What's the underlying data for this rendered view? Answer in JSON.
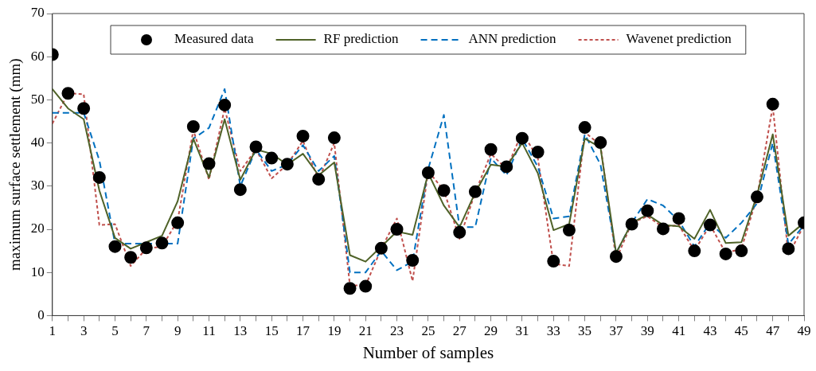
{
  "chart_data": {
    "type": "line",
    "xlabel": "Number of samples",
    "ylabel": "maximum surface settlement (mm)",
    "x": [
      1,
      2,
      3,
      4,
      5,
      6,
      7,
      8,
      9,
      10,
      11,
      12,
      13,
      14,
      15,
      16,
      17,
      18,
      19,
      20,
      21,
      22,
      23,
      24,
      25,
      26,
      27,
      28,
      29,
      30,
      31,
      32,
      33,
      34,
      35,
      36,
      37,
      38,
      39,
      40,
      41,
      42,
      43,
      44,
      45,
      46,
      47,
      48,
      49
    ],
    "xlim": [
      1,
      49
    ],
    "xticks": [
      1,
      {
        "value": 2,
        "label": null
      },
      3,
      {
        "value": 4,
        "label": null
      },
      5,
      {
        "value": 6,
        "label": null
      },
      7,
      {
        "value": 8,
        "label": null
      },
      9,
      {
        "value": 10,
        "label": null
      },
      11,
      {
        "value": 12,
        "label": null
      },
      13,
      {
        "value": 14,
        "label": null
      },
      15,
      {
        "value": 16,
        "label": null
      },
      17,
      {
        "value": 18,
        "label": null
      },
      19,
      {
        "value": 20,
        "label": null
      },
      21,
      {
        "value": 22,
        "label": null
      },
      23,
      {
        "value": 24,
        "label": null
      },
      25,
      {
        "value": 26,
        "label": null
      },
      27,
      {
        "value": 28,
        "label": null
      },
      29,
      {
        "value": 30,
        "label": null
      },
      31,
      {
        "value": 32,
        "label": null
      },
      33,
      {
        "value": 34,
        "label": null
      },
      35,
      {
        "value": 36,
        "label": null
      },
      37,
      {
        "value": 38,
        "label": null
      },
      39,
      {
        "value": 40,
        "label": null
      },
      41,
      {
        "value": 42,
        "label": null
      },
      43,
      {
        "value": 44,
        "label": null
      },
      45,
      {
        "value": 46,
        "label": null
      },
      47,
      {
        "value": 48,
        "label": null
      },
      49
    ],
    "ylim": [
      0,
      70
    ],
    "yticks": [
      0,
      10,
      20,
      30,
      40,
      50,
      60,
      70
    ],
    "grid": false,
    "legend": "top",
    "marker": "none",
    "series": [
      {
        "name": "Measured data",
        "type": "scatter",
        "marker": "circle",
        "color": "#000000",
        "values": [
          60.5,
          51.5,
          48,
          32,
          16,
          13.5,
          15.7,
          16.8,
          21.5,
          43.8,
          35.2,
          48.8,
          29.2,
          39.1,
          36.5,
          35.1,
          41.6,
          31.6,
          41.2,
          6.3,
          6.8,
          15.6,
          20,
          12.8,
          33.1,
          29,
          19.3,
          28.7,
          38.5,
          34.5,
          41.1,
          37.9,
          12.6,
          19.8,
          43.6,
          40.1,
          13.7,
          21.2,
          24.3,
          20.1,
          22.5,
          15,
          21,
          14.3,
          15,
          27.5,
          49,
          15.5,
          21.5
        ]
      },
      {
        "name": "RF prediction",
        "line_style": "solid",
        "color": "#4f6228",
        "values": [
          52.5,
          48,
          45.5,
          29,
          18,
          15.5,
          17,
          18.5,
          26.5,
          41,
          32,
          45.5,
          31.5,
          38.5,
          37.5,
          35,
          37.5,
          32.5,
          35.5,
          14,
          12.5,
          16,
          19.5,
          18.7,
          33,
          25.5,
          20.5,
          28.5,
          35,
          34.5,
          40,
          33,
          19.8,
          21.2,
          41,
          39,
          14.5,
          21.5,
          23.4,
          21,
          20.7,
          17.8,
          24.5,
          16.8,
          17,
          28,
          42,
          18.5,
          21.5
        ]
      },
      {
        "name": "ANN prediction",
        "line_style": "dashed",
        "color": "#0070c0",
        "values": [
          47,
          47,
          47,
          36,
          16.7,
          16.7,
          16.7,
          16.7,
          16.7,
          41,
          43.5,
          52.5,
          30,
          38.5,
          33.5,
          35,
          39.5,
          33.5,
          37,
          10,
          10,
          15,
          10.5,
          12.5,
          34,
          46.5,
          20.5,
          20.5,
          36.5,
          32.5,
          41,
          34.5,
          22.5,
          23,
          42,
          35,
          14.5,
          21.5,
          27,
          25.5,
          22,
          16,
          21.5,
          18,
          21.5,
          26,
          40,
          16.5,
          21
        ]
      },
      {
        "name": "Wavenet prediction",
        "line_style": "dotted",
        "color": "#c0504d",
        "values": [
          44.5,
          51.5,
          51.3,
          21,
          21.2,
          11.5,
          15.5,
          16,
          22,
          43,
          31.5,
          48,
          33.5,
          38.5,
          31.8,
          35,
          40.5,
          31.5,
          40,
          7,
          7,
          15.5,
          22.5,
          8,
          33.5,
          29,
          17.8,
          28.5,
          37.5,
          34,
          42.5,
          36.5,
          12,
          11.5,
          42.5,
          39.5,
          13,
          21.5,
          23,
          20.5,
          21,
          15,
          21,
          14.5,
          15.5,
          27.5,
          48.5,
          14,
          21
        ]
      }
    ]
  }
}
